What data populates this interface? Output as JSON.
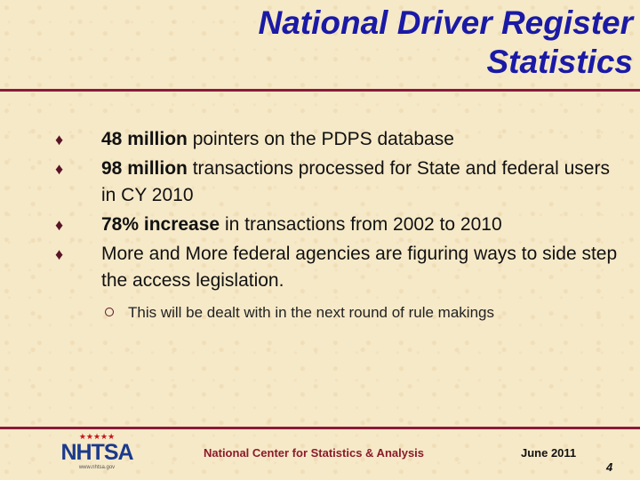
{
  "slide": {
    "title_line1": "National Driver Register",
    "title_line2": "Statistics",
    "bullets": [
      {
        "bold": "48 million",
        "text": " pointers on the PDPS database"
      },
      {
        "bold": "98 million",
        "text": " transactions processed for State and federal users in CY 2010"
      },
      {
        "bold": "78% increase",
        "text": " in transactions from 2002 to 2010"
      },
      {
        "bold": "",
        "text": "More and More federal agencies are figuring ways to side step the access legislation."
      }
    ],
    "sub_bullet": "This will be dealt with in the next round of rule makings"
  },
  "footer": {
    "logo_stars": "★★★★★",
    "logo_text": "NHTSA",
    "logo_url": "www.nhtsa.gov",
    "center_text": "National Center for Statistics & Analysis",
    "date": "June 2011",
    "page_number": "4"
  },
  "colors": {
    "title": "#1a1aa6",
    "rule": "#8b1a3a",
    "background": "#f6e9c8"
  }
}
